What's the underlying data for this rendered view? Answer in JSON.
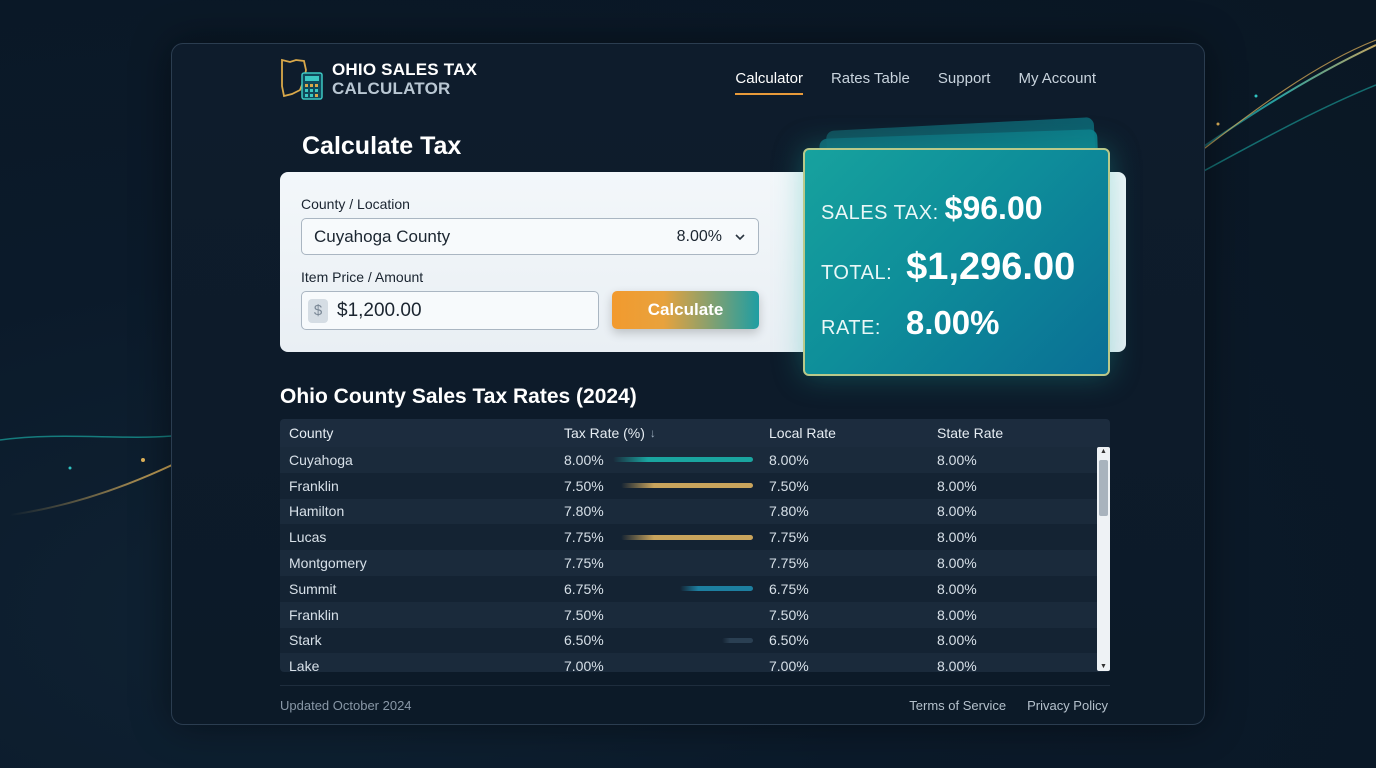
{
  "brand": {
    "line1": "OHIO SALES TAX",
    "line2": "CALCULATOR",
    "icon": "ohio-calculator-icon"
  },
  "nav": {
    "items": [
      {
        "label": "Calculator",
        "active": true
      },
      {
        "label": "Rates Table",
        "active": false
      },
      {
        "label": "Support",
        "active": false
      },
      {
        "label": "My Account",
        "active": false
      }
    ]
  },
  "calculator": {
    "title": "Calculate Tax",
    "county_label": "County / Location",
    "county_value": "Cuyahoga County",
    "county_rate": "8.00%",
    "price_label": "Item Price / Amount",
    "currency_symbol": "$",
    "price_value": "$1,200.00",
    "button_label": "Calculate"
  },
  "result": {
    "sales_tax_label": "SALES TAX:",
    "sales_tax_value": "$96.00",
    "total_label": "TOTAL:",
    "total_value": "$1,296.00",
    "rate_label": "RATE:",
    "rate_value": "8.00%"
  },
  "rates_table": {
    "title": "Ohio County Sales Tax Rates (2024)",
    "headers": [
      "County",
      "Tax Rate (%)",
      "Local Rate",
      "State Rate"
    ],
    "sort_icon": "sort-down-icon",
    "rows": [
      {
        "county": "Cuyahoga",
        "tax_rate": "8.00%",
        "local_rate": "8.00%",
        "state_rate": "8.00%",
        "bar_level": 1.0,
        "bar_color": "#1aa5a0"
      },
      {
        "county": "Franklin",
        "tax_rate": "7.50%",
        "local_rate": "7.50%",
        "state_rate": "8.00%",
        "bar_level": 0.94,
        "bar_color": "#c9a45c"
      },
      {
        "county": "Hamilton",
        "tax_rate": "7.80%",
        "local_rate": "7.80%",
        "state_rate": "8.00%",
        "bar_level": 0,
        "bar_color": "#c9a45c"
      },
      {
        "county": "Lucas",
        "tax_rate": "7.75%",
        "local_rate": "7.75%",
        "state_rate": "8.00%",
        "bar_level": 0.94,
        "bar_color": "#c9a45c"
      },
      {
        "county": "Montgomery",
        "tax_rate": "7.75%",
        "local_rate": "7.75%",
        "state_rate": "8.00%",
        "bar_level": 0,
        "bar_color": "#c9a45c"
      },
      {
        "county": "Summit",
        "tax_rate": "6.75%",
        "local_rate": "6.75%",
        "state_rate": "8.00%",
        "bar_level": 0.52,
        "bar_color": "#1d7fa0"
      },
      {
        "county": "Franklin",
        "tax_rate": "7.50%",
        "local_rate": "7.50%",
        "state_rate": "8.00%",
        "bar_level": 0,
        "bar_color": "#c9a45c"
      },
      {
        "county": "Stark",
        "tax_rate": "6.50%",
        "local_rate": "6.50%",
        "state_rate": "8.00%",
        "bar_level": 0.22,
        "bar_color": "#2a3f52"
      },
      {
        "county": "Lake",
        "tax_rate": "7.00%",
        "local_rate": "7.00%",
        "state_rate": "8.00%",
        "bar_level": 0,
        "bar_color": "#c9a45c"
      }
    ]
  },
  "footer": {
    "updated": "Updated October 2024",
    "links": [
      "Terms of Service",
      "Privacy Policy"
    ]
  }
}
